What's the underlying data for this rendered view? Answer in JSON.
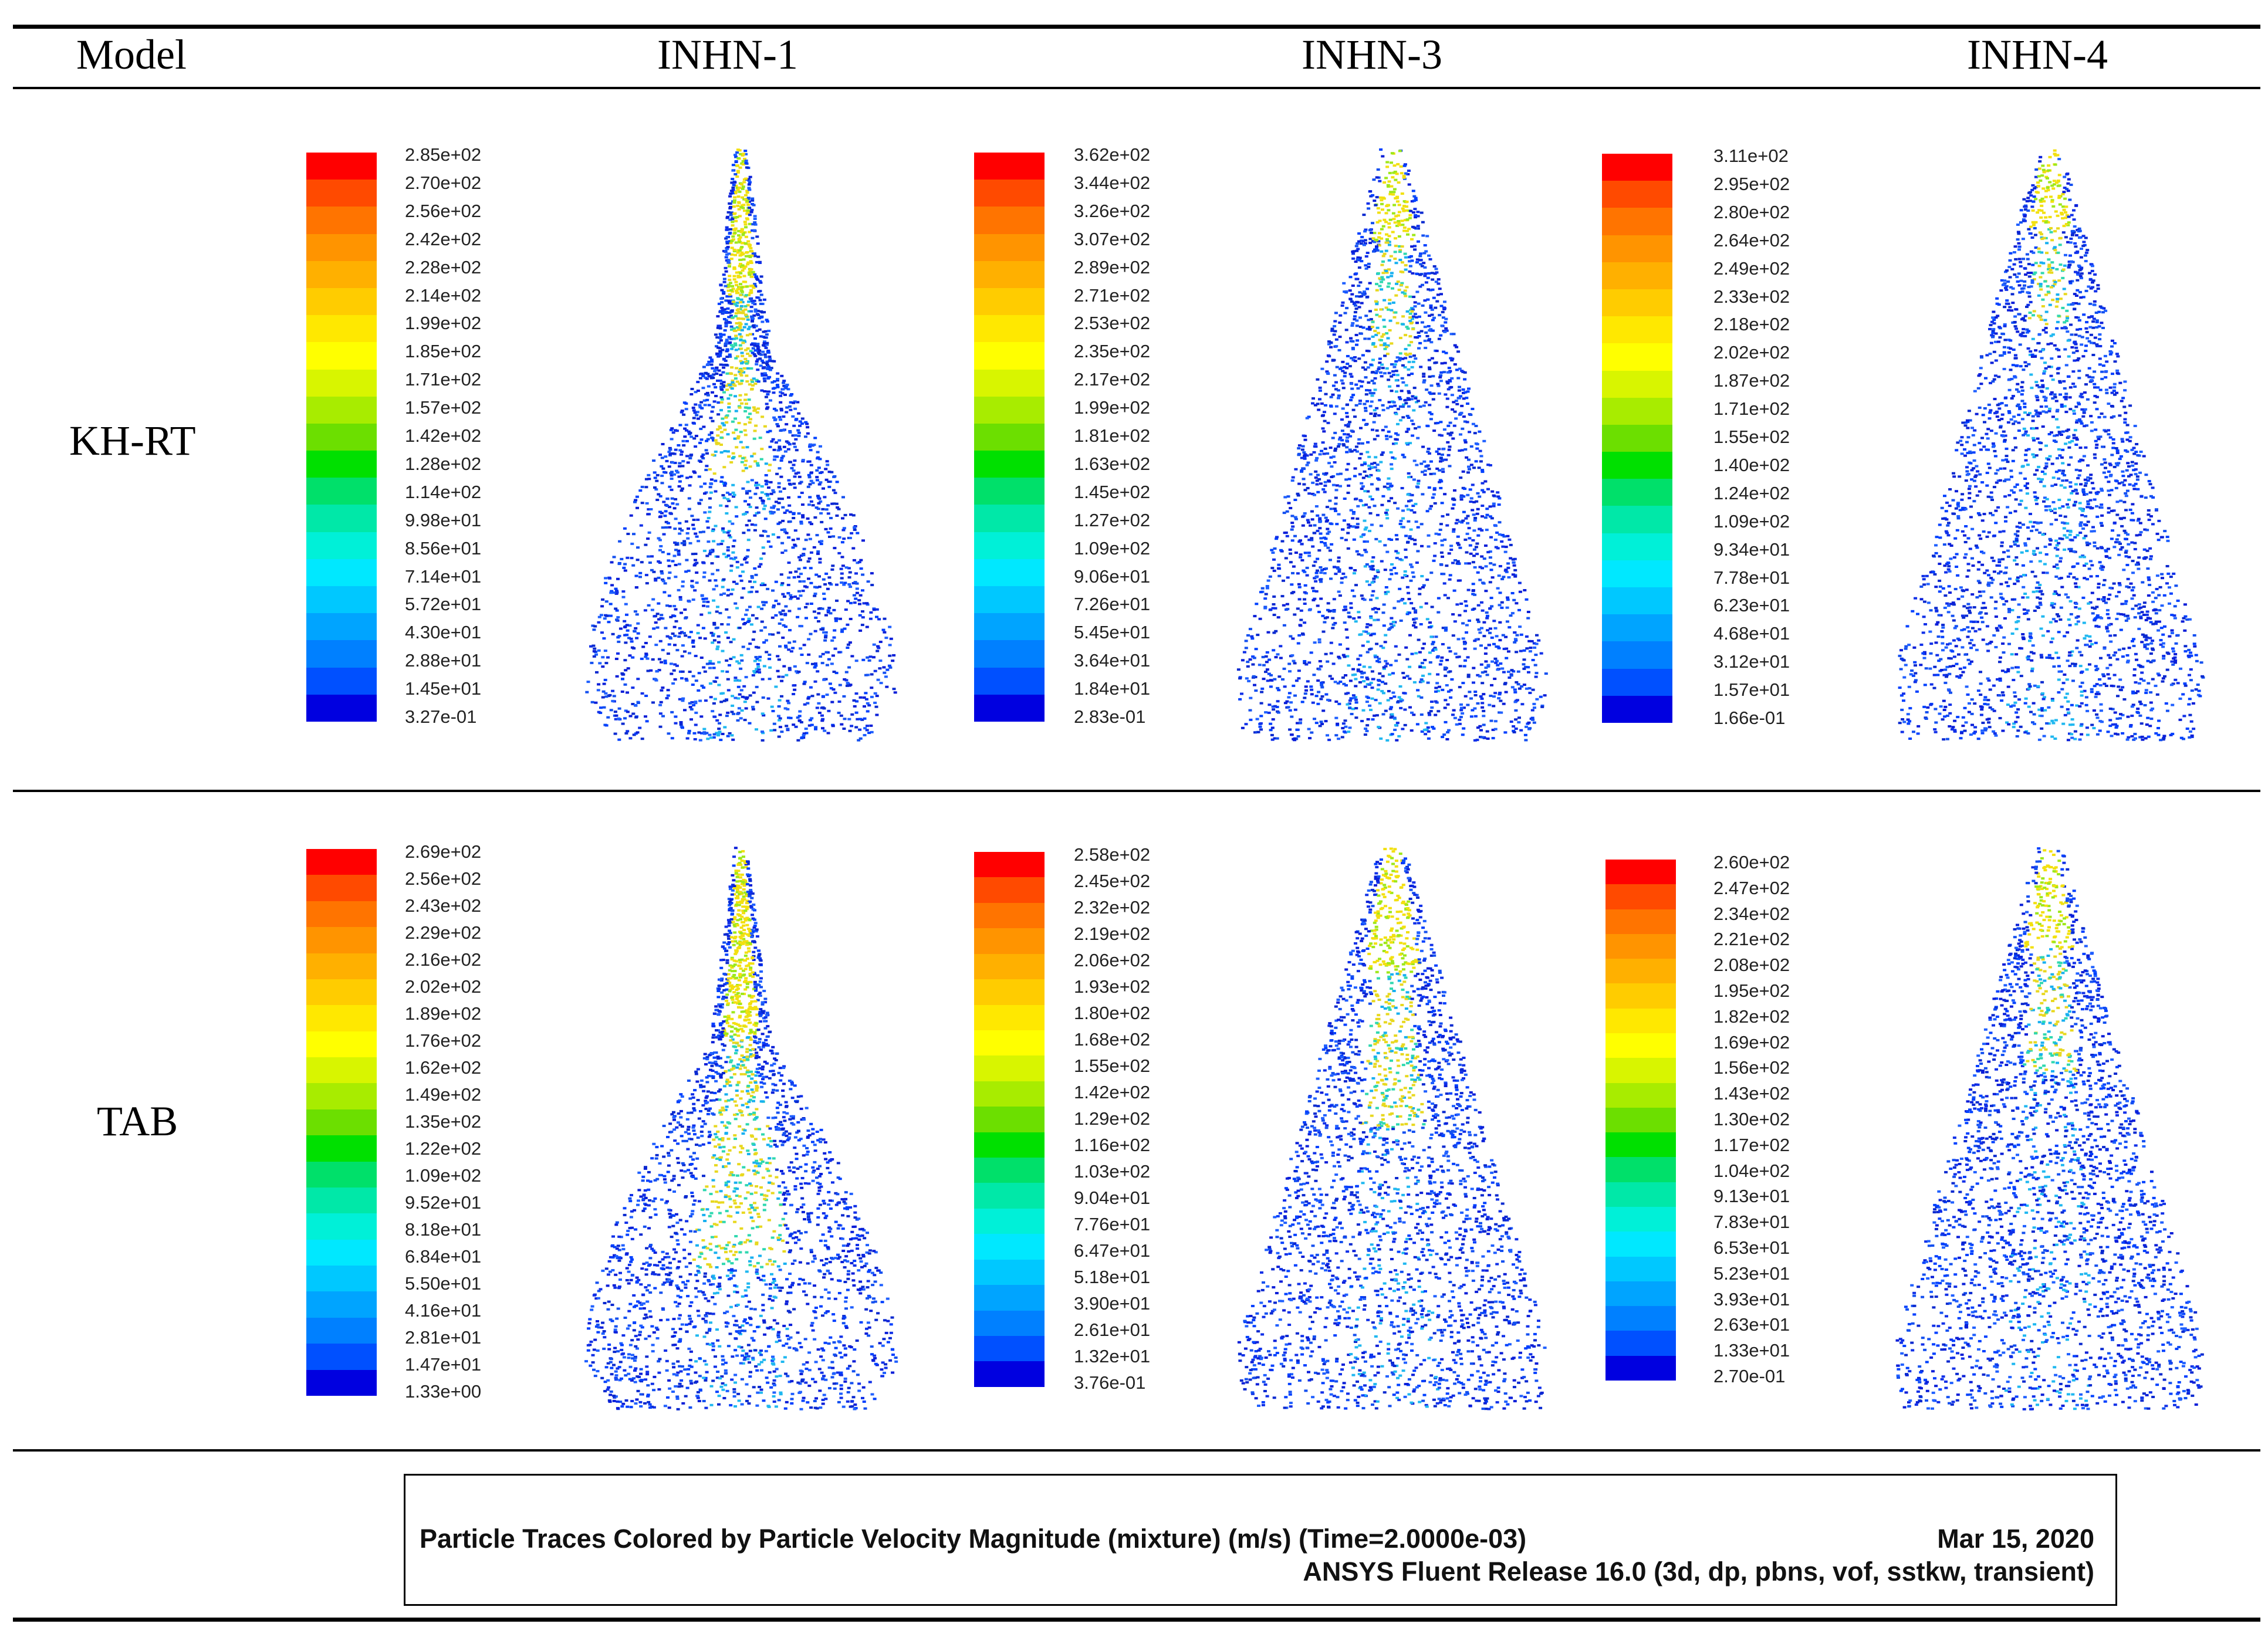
{
  "header": {
    "model_label": "Model",
    "columns": [
      "INHN-1",
      "INHN-3",
      "INHN-4"
    ]
  },
  "rows": [
    {
      "model": "KH-RT",
      "panels": [
        {
          "injector": "INHN-1",
          "legend": [
            "2.85e+02",
            "2.70e+02",
            "2.56e+02",
            "2.42e+02",
            "2.28e+02",
            "2.14e+02",
            "1.99e+02",
            "1.85e+02",
            "1.71e+02",
            "1.57e+02",
            "1.42e+02",
            "1.28e+02",
            "1.14e+02",
            "9.98e+01",
            "8.56e+01",
            "7.14e+01",
            "5.72e+01",
            "4.30e+01",
            "2.88e+01",
            "1.45e+01",
            "3.27e-01"
          ]
        },
        {
          "injector": "INHN-3",
          "legend": [
            "3.62e+02",
            "3.44e+02",
            "3.26e+02",
            "3.07e+02",
            "2.89e+02",
            "2.71e+02",
            "2.53e+02",
            "2.35e+02",
            "2.17e+02",
            "1.99e+02",
            "1.81e+02",
            "1.63e+02",
            "1.45e+02",
            "1.27e+02",
            "1.09e+02",
            "9.06e+01",
            "7.26e+01",
            "5.45e+01",
            "3.64e+01",
            "1.84e+01",
            "2.83e-01"
          ]
        },
        {
          "injector": "INHN-4",
          "legend": [
            "3.11e+02",
            "2.95e+02",
            "2.80e+02",
            "2.64e+02",
            "2.49e+02",
            "2.33e+02",
            "2.18e+02",
            "2.02e+02",
            "1.87e+02",
            "1.71e+02",
            "1.55e+02",
            "1.40e+02",
            "1.24e+02",
            "1.09e+02",
            "9.34e+01",
            "7.78e+01",
            "6.23e+01",
            "4.68e+01",
            "3.12e+01",
            "1.57e+01",
            "1.66e-01"
          ]
        }
      ]
    },
    {
      "model": "TAB",
      "panels": [
        {
          "injector": "INHN-1",
          "legend": [
            "2.69e+02",
            "2.56e+02",
            "2.43e+02",
            "2.29e+02",
            "2.16e+02",
            "2.02e+02",
            "1.89e+02",
            "1.76e+02",
            "1.62e+02",
            "1.49e+02",
            "1.35e+02",
            "1.22e+02",
            "1.09e+02",
            "9.52e+01",
            "8.18e+01",
            "6.84e+01",
            "5.50e+01",
            "4.16e+01",
            "2.81e+01",
            "1.47e+01",
            "1.33e+00"
          ]
        },
        {
          "injector": "INHN-3",
          "legend": [
            "2.58e+02",
            "2.45e+02",
            "2.32e+02",
            "2.19e+02",
            "2.06e+02",
            "1.93e+02",
            "1.80e+02",
            "1.68e+02",
            "1.55e+02",
            "1.42e+02",
            "1.29e+02",
            "1.16e+02",
            "1.03e+02",
            "9.04e+01",
            "7.76e+01",
            "6.47e+01",
            "5.18e+01",
            "3.90e+01",
            "2.61e+01",
            "1.32e+01",
            "3.76e-01"
          ]
        },
        {
          "injector": "INHN-4",
          "legend": [
            "2.60e+02",
            "2.47e+02",
            "2.34e+02",
            "2.21e+02",
            "2.08e+02",
            "1.95e+02",
            "1.82e+02",
            "1.69e+02",
            "1.56e+02",
            "1.43e+02",
            "1.30e+02",
            "1.17e+02",
            "1.04e+02",
            "9.13e+01",
            "7.83e+01",
            "6.53e+01",
            "5.23e+01",
            "3.93e+01",
            "2.63e+01",
            "1.33e+01",
            "2.70e-01"
          ]
        }
      ]
    }
  ],
  "colormap": [
    "#ff0000",
    "#ff4a00",
    "#ff7400",
    "#ff9400",
    "#ffb000",
    "#ffcc00",
    "#ffe800",
    "#ffff00",
    "#d8f500",
    "#a8ec00",
    "#6cdf00",
    "#00e000",
    "#00e06a",
    "#00e8a8",
    "#00f0d8",
    "#00e8ff",
    "#00c8ff",
    "#00a4ff",
    "#0080ff",
    "#0050ff",
    "#0000e0"
  ],
  "caption": {
    "line1": "Particle Traces Colored by Particle Velocity Magnitude (mixture)  (m/s)  (Time=2.0000e-03)",
    "date": "Mar 15, 2020",
    "line2": "ANSYS Fluent Release 16.0 (3d, dp, pbns, vof, sstkw, transient)"
  }
}
